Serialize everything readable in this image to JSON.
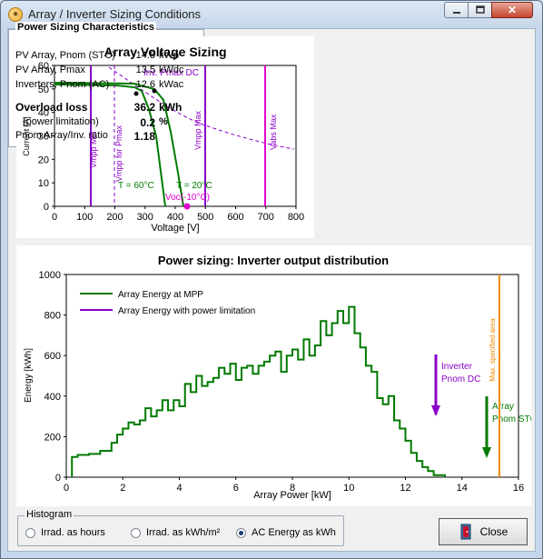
{
  "window": {
    "title": "Array / Inverter Sizing Conditions",
    "close_glyph": "✕"
  },
  "voltage_chart": {
    "title": "Array Voltage Sizing",
    "xlabel": "Voltage [V]",
    "ylabel": "Current [A]",
    "x_ticks": [
      "0",
      "100",
      "200",
      "300",
      "400",
      "500",
      "600",
      "700",
      "800"
    ],
    "y_ticks": [
      "0",
      "10",
      "20",
      "30",
      "40",
      "50",
      "60"
    ],
    "annotations": {
      "inv_pmax": "Inv. Pmax DC",
      "vmpp_min": "Vmpp Min",
      "vmpp_for_pmax": "Vmpp for Pmax",
      "vmpp_max": "Vmpp Max",
      "vabs_max": "Vabs Max",
      "t60": "T = 60°C",
      "t20": "T = 20°C",
      "voc": "Voc(-10°C)"
    }
  },
  "characteristics": {
    "title": "Power Sizing Characteristics",
    "rows": [
      {
        "label": "PV Array, Pnom (STC)",
        "value": "14.8",
        "unit": "kWp"
      },
      {
        "label": "PV Array, Pmax",
        "value": "13.5",
        "unit": "kWdc"
      },
      {
        "label": "Inverters, Pnom (AC)",
        "value": "12.6",
        "unit": "kWac"
      }
    ],
    "overload_label": "Overload loss",
    "overload_value": "36.2",
    "overload_unit": "kWh",
    "limitation_label": "(power limitation)",
    "limitation_value": "0.2",
    "limitation_unit": "%",
    "ratio_label": "Pnom Array/Inv. ratio",
    "ratio_value": "1.18"
  },
  "chart_data": {
    "type": "bar",
    "title": "Power sizing: Inverter output distribution",
    "xlabel": "Array Power [kW]",
    "ylabel": "Energy [kWh]",
    "xlim": [
      0,
      16
    ],
    "ylim": [
      0,
      1000
    ],
    "x_ticks": [
      "0",
      "2",
      "4",
      "6",
      "8",
      "10",
      "12",
      "14",
      "16"
    ],
    "y_ticks": [
      "0",
      "200",
      "400",
      "600",
      "800",
      "1000"
    ],
    "bin_width": 0.2,
    "bin_start": 0.2,
    "series": [
      {
        "name": "Array Energy at MPP",
        "color": "#007a00",
        "values": [
          100,
          110,
          110,
          115,
          115,
          130,
          130,
          170,
          210,
          240,
          270,
          260,
          280,
          340,
          300,
          330,
          380,
          330,
          380,
          350,
          460,
          420,
          500,
          450,
          470,
          490,
          540,
          510,
          560,
          480,
          540,
          550,
          510,
          550,
          570,
          600,
          620,
          520,
          600,
          630,
          580,
          680,
          600,
          650,
          770,
          700,
          760,
          820,
          760,
          840,
          710,
          640,
          550,
          520,
          390,
          360,
          400,
          280,
          240,
          180,
          120,
          80,
          50,
          30,
          10,
          10
        ]
      }
    ],
    "annotations": {
      "limited_series": "Array Energy with power limitation",
      "inverter_label_1": "Inverter",
      "inverter_label_2": "Pnom DC",
      "array_label_1": "Array",
      "array_label_2": "Pnom STC",
      "max_label": "Max. specified area"
    },
    "colors": {
      "mpp": "#007a00",
      "limited": "#8a00c8",
      "max_line": "#f08a00"
    }
  },
  "histogram": {
    "legend": "Histogram",
    "options": [
      "Irrad. as hours",
      "Irrad. as kWh/m²",
      "AC Energy as kWh"
    ],
    "selected": 2
  },
  "close_button": "Close"
}
